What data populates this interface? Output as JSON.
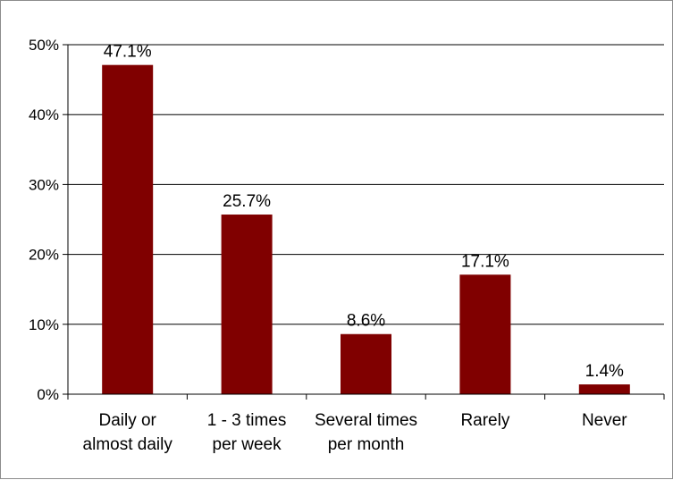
{
  "chart_data": {
    "type": "bar",
    "categories": [
      [
        "Daily or",
        "almost daily"
      ],
      [
        "1 - 3 times",
        "per week"
      ],
      [
        "Several times",
        "per month"
      ],
      [
        "Rarely"
      ],
      [
        "Never"
      ]
    ],
    "values": [
      47.1,
      25.7,
      8.6,
      17.1,
      1.4
    ],
    "data_labels": [
      "47.1%",
      "25.7%",
      "8.6%",
      "17.1%",
      "1.4%"
    ],
    "y_ticks": [
      0,
      10,
      20,
      30,
      40,
      50
    ],
    "y_tick_labels": [
      "0%",
      "10%",
      "20%",
      "30%",
      "40%",
      "50%"
    ],
    "ylim": [
      0,
      50
    ],
    "grid": true,
    "bar_color": "#800000",
    "grid_color": "#000000",
    "title": "",
    "xlabel": "",
    "ylabel": ""
  }
}
